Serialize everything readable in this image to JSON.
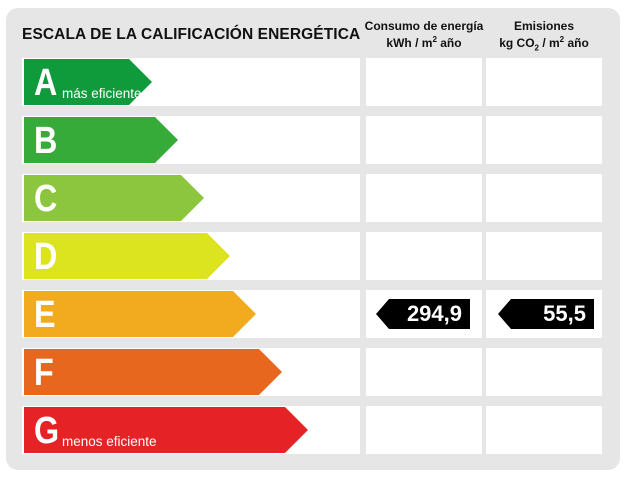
{
  "header": {
    "title": "ESCALA DE LA CALIFICACIÓN ENERGÉTICA",
    "col1_line1": "Consumo de energía",
    "col1_line2": "kWh / m",
    "col1_sup": "2",
    "col1_tail": " año",
    "col2_line1": "Emisiones",
    "col2_line2": "kg CO",
    "col2_sub": "2",
    "col2_tail": " / m",
    "col2_sup": "2",
    "col2_tail2": " año"
  },
  "rows": [
    {
      "letter": "A",
      "sublabel": "más eficiente",
      "color": "#0f9a3c"
    },
    {
      "letter": "B",
      "sublabel": "",
      "color": "#37ab3a"
    },
    {
      "letter": "C",
      "sublabel": "",
      "color": "#8cc63f"
    },
    {
      "letter": "D",
      "sublabel": "",
      "color": "#dce31f"
    },
    {
      "letter": "E",
      "sublabel": "",
      "color": "#f2ab1f"
    },
    {
      "letter": "F",
      "sublabel": "",
      "color": "#e7671f"
    },
    {
      "letter": "G",
      "sublabel": "menos eficiente",
      "color": "#e52225"
    }
  ],
  "rating": {
    "class": "E",
    "consumo": "294,9",
    "emisiones": "55,5"
  }
}
